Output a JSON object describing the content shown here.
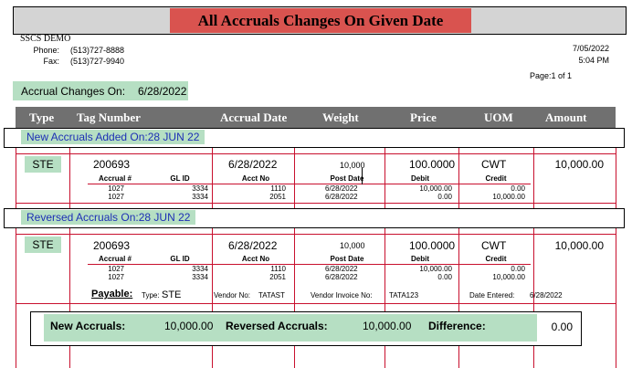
{
  "report": {
    "title": "All Accruals Changes On Given Date",
    "company": "SSCS DEMO",
    "phone_label": "Phone:",
    "phone": "(513)727-8888",
    "fax_label": "Fax:",
    "fax": "(513)727-9940",
    "date": "7/05/2022",
    "time": "5:04 PM",
    "page": "Page:1 of 1",
    "changes_on_label": "Accrual Changes On:",
    "changes_on_date": "6/28/2022"
  },
  "columns": [
    "Type",
    "Tag Number",
    "Accrual Date",
    "Weight",
    "Price",
    "UOM",
    "Amount"
  ],
  "sub_headers": {
    "accrual": "Accrual #",
    "gl": "GL ID",
    "acct": "Acct No",
    "post": "Post Date",
    "debit": "Debit",
    "credit": "Credit"
  },
  "sections": [
    {
      "label": "New Accruals Added On:28 JUN 22",
      "type": "STE",
      "tag": "200693",
      "date": "6/28/2022",
      "weight": "10,000",
      "price": "100.0000",
      "uom": "CWT",
      "amount": "10,000.00",
      "lines": [
        {
          "accrual": "1027",
          "gl": "3334",
          "acct": "1110",
          "post": "6/28/2022",
          "debit": "10,000.00",
          "credit": "0.00"
        },
        {
          "accrual": "1027",
          "gl": "3334",
          "acct": "2051",
          "post": "6/28/2022",
          "debit": "0.00",
          "credit": "10,000.00"
        }
      ]
    },
    {
      "label": "Reversed Accruals On:28 JUN 22",
      "type": "STE",
      "tag": "200693",
      "date": "6/28/2022",
      "weight": "10,000",
      "price": "100.0000",
      "uom": "CWT",
      "amount": "10,000.00",
      "lines": [
        {
          "accrual": "1027",
          "gl": "3334",
          "acct": "1110",
          "post": "6/28/2022",
          "debit": "10,000.00",
          "credit": "0.00"
        },
        {
          "accrual": "1027",
          "gl": "3334",
          "acct": "2051",
          "post": "6/28/2022",
          "debit": "0.00",
          "credit": "10,000.00"
        }
      ]
    }
  ],
  "payable": {
    "label": "Payable:",
    "type_label": "Type:",
    "type": "STE",
    "vendor_label": "Vendor No:",
    "vendor": "TATAST",
    "invoice_label": "Vendor Invoice No:",
    "invoice": "TATA123",
    "entered_label": "Date Entered:",
    "entered": "6/28/2022"
  },
  "totals": {
    "new_label": "New Accruals:",
    "new_value": "10,000.00",
    "reversed_label": "Reversed Accruals:",
    "reversed_value": "10,000.00",
    "diff_label": "Difference:",
    "diff_value": "0.00"
  }
}
